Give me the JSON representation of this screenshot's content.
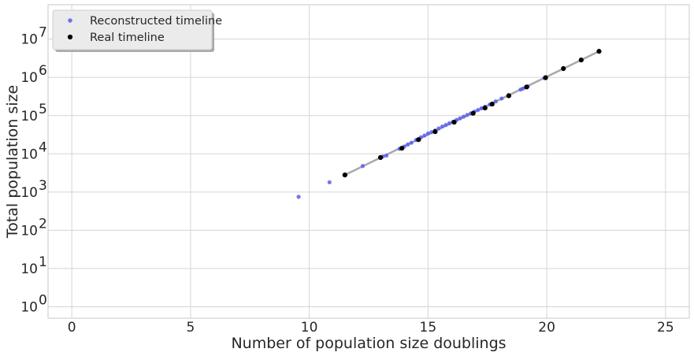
{
  "chart_data": {
    "type": "scatter",
    "xlabel": "Number of population size doublings",
    "ylabel": "Total population size",
    "xlim": [
      -1,
      26
    ],
    "ylim_log10": [
      -0.3,
      7.9
    ],
    "y_scale": "log",
    "x_ticks": [
      0,
      5,
      10,
      15,
      20,
      25
    ],
    "x_tick_labels": [
      "0",
      "5",
      "10",
      "15",
      "20",
      "25"
    ],
    "y_ticks": [
      {
        "exp": 0,
        "base": "10",
        "sup": "0"
      },
      {
        "exp": 1,
        "base": "10",
        "sup": "1"
      },
      {
        "exp": 2,
        "base": "10",
        "sup": "2"
      },
      {
        "exp": 3,
        "base": "10",
        "sup": "3"
      },
      {
        "exp": 4,
        "base": "10",
        "sup": "4"
      },
      {
        "exp": 5,
        "base": "10",
        "sup": "5"
      },
      {
        "exp": 6,
        "base": "10",
        "sup": "6"
      },
      {
        "exp": 7,
        "base": "10",
        "sup": "7"
      }
    ],
    "grid": true,
    "legend_position": "top-left",
    "colors": {
      "reconstructed": "#5a5ef0",
      "real": "#000000",
      "fit_line": "#a9a9a9",
      "grid": "#d5d5d5",
      "frame": "#c8c8c8"
    },
    "fit_line": {
      "x": [
        11.5,
        22.2
      ],
      "y": [
        2800,
        4800000
      ]
    },
    "series": [
      {
        "name": "Reconstructed timeline",
        "color": "#5a5ef0",
        "x": [
          9.55,
          10.85,
          12.25,
          13.1,
          13.25,
          13.8,
          14.0,
          14.15,
          14.3,
          14.5,
          14.7,
          14.85,
          15.0,
          15.15,
          15.3,
          15.45,
          15.6,
          15.75,
          15.9,
          16.05,
          16.2,
          16.35,
          16.5,
          16.65,
          16.8,
          16.95,
          17.1,
          17.25,
          17.4,
          17.6,
          17.85,
          18.1,
          18.4,
          18.9,
          19.0,
          19.2,
          19.9,
          20.7
        ],
        "y": [
          750,
          1800,
          4800,
          8500,
          9000,
          13500,
          15500,
          17500,
          19500,
          23000,
          27000,
          30000,
          34000,
          37000,
          41000,
          46000,
          52000,
          57000,
          63000,
          69000,
          77000,
          85000,
          94000,
          104000,
          114000,
          127000,
          140000,
          155000,
          170000,
          195000,
          235000,
          280000,
          345000,
          480000,
          510000,
          580000,
          960000,
          1650000
        ]
      },
      {
        "name": "Real timeline",
        "color": "#000000",
        "x": [
          11.5,
          13.0,
          13.9,
          14.6,
          15.3,
          16.1,
          16.9,
          17.4,
          17.7,
          18.4,
          19.15,
          19.95,
          20.7,
          21.45,
          22.2
        ],
        "y": [
          2800,
          8000,
          14000,
          23500,
          38000,
          67000,
          115000,
          158000,
          200000,
          330000,
          560000,
          980000,
          1700000,
          2850000,
          4800000
        ]
      }
    ]
  }
}
